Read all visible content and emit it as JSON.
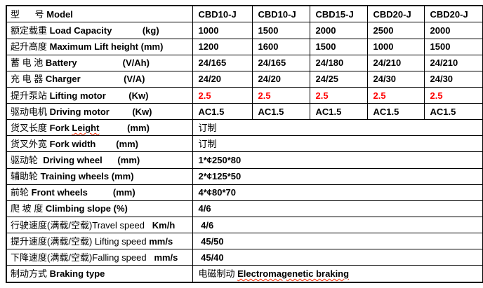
{
  "page": {
    "background": "#ffffff"
  },
  "colors": {
    "text": "#000000",
    "border": "#000000",
    "accent_red": "#ff0000",
    "spellcheck_underline": "#ff2a00"
  },
  "table": {
    "model_column_count": 5,
    "rows": [
      {
        "name": "model",
        "label": [
          {
            "t": "型      号 "
          },
          {
            "t": "Model",
            "b": 1
          }
        ],
        "cells": [
          [
            {
              "t": "CBD10-J",
              "b": 1
            }
          ],
          [
            {
              "t": "CBD10-J",
              "b": 1
            }
          ],
          [
            {
              "t": "CBD15-J",
              "b": 1
            }
          ],
          [
            {
              "t": "CBD20-J",
              "b": 1
            }
          ],
          [
            {
              "t": "CBD20-J",
              "b": 1
            }
          ]
        ]
      },
      {
        "name": "load-capacity",
        "label": [
          {
            "t": "额定载重 "
          },
          {
            "t": "Load Capacity            (kg)",
            "b": 1
          }
        ],
        "cells": [
          [
            {
              "t": "1000",
              "b": 1
            }
          ],
          [
            {
              "t": "1500",
              "b": 1
            }
          ],
          [
            {
              "t": "2000",
              "b": 1
            }
          ],
          [
            {
              "t": "2500",
              "b": 1
            }
          ],
          [
            {
              "t": "2000",
              "b": 1
            }
          ]
        ]
      },
      {
        "name": "max-lift-height",
        "label": [
          {
            "t": "起升高度 "
          },
          {
            "t": "Maximum Lift height (mm)",
            "b": 1
          }
        ],
        "cells": [
          [
            {
              "t": "1200",
              "b": 1
            }
          ],
          [
            {
              "t": "1600",
              "b": 1
            }
          ],
          [
            {
              "t": "1500",
              "b": 1
            }
          ],
          [
            {
              "t": "1000",
              "b": 1
            }
          ],
          [
            {
              "t": "1500",
              "b": 1
            }
          ]
        ]
      },
      {
        "name": "battery",
        "label": [
          {
            "t": "蓄 电 池 "
          },
          {
            "t": "Battery                  (V/Ah)",
            "b": 1
          }
        ],
        "cells": [
          [
            {
              "t": "24/165",
              "b": 1
            }
          ],
          [
            {
              "t": "24/165",
              "b": 1
            }
          ],
          [
            {
              "t": "24/180",
              "b": 1
            }
          ],
          [
            {
              "t": "24/210",
              "b": 1
            }
          ],
          [
            {
              "t": "24/210",
              "b": 1
            }
          ]
        ]
      },
      {
        "name": "charger",
        "label": [
          {
            "t": "充 电 器 "
          },
          {
            "t": "Charger                 (V/A)",
            "b": 1
          }
        ],
        "cells": [
          [
            {
              "t": "24/20",
              "b": 1
            }
          ],
          [
            {
              "t": "24/20",
              "b": 1
            }
          ],
          [
            {
              "t": "24/25",
              "b": 1
            }
          ],
          [
            {
              "t": "24/30",
              "b": 1
            }
          ],
          [
            {
              "t": "24/30",
              "b": 1
            }
          ]
        ]
      },
      {
        "name": "lifting-motor",
        "label": [
          {
            "t": "提升泵站 "
          },
          {
            "t": "Lifting motor         (Kw)",
            "b": 1
          }
        ],
        "cells": [
          [
            {
              "t": "2.5",
              "b": 1,
              "r": 1
            }
          ],
          [
            {
              "t": "2.5",
              "b": 1,
              "r": 1
            }
          ],
          [
            {
              "t": "2.5",
              "b": 1,
              "r": 1
            }
          ],
          [
            {
              "t": "2.5",
              "b": 1,
              "r": 1
            }
          ],
          [
            {
              "t": "2.5",
              "b": 1,
              "r": 1
            }
          ]
        ]
      },
      {
        "name": "driving-motor",
        "label": [
          {
            "t": "驱动电机 "
          },
          {
            "t": "Driving motor         (Kw)",
            "b": 1
          }
        ],
        "cells": [
          [
            {
              "t": "AC1.5",
              "b": 1
            }
          ],
          [
            {
              "t": "AC1.5",
              "b": 1
            }
          ],
          [
            {
              "t": "AC1.5",
              "b": 1
            }
          ],
          [
            {
              "t": "AC1.5",
              "b": 1
            }
          ],
          [
            {
              "t": "AC1.5",
              "b": 1
            }
          ]
        ]
      },
      {
        "name": "fork-length",
        "label": [
          {
            "t": "货叉长度 "
          },
          {
            "t": "Fork ",
            "b": 1
          },
          {
            "t": "Leight",
            "b": 1,
            "w": 1
          },
          {
            "t": "           (mm)",
            "b": 1
          }
        ],
        "span": 1,
        "cells": [
          [
            {
              "t": "订制"
            }
          ]
        ]
      },
      {
        "name": "fork-width",
        "label": [
          {
            "t": "货叉外宽 "
          },
          {
            "t": "Fork width        (mm)",
            "b": 1
          }
        ],
        "span": 1,
        "cells": [
          [
            {
              "t": "订制"
            }
          ]
        ]
      },
      {
        "name": "driving-wheel",
        "label": [
          {
            "t": "驱动轮  "
          },
          {
            "t": "Driving wheel      (mm)",
            "b": 1
          }
        ],
        "span": 1,
        "cells": [
          [
            {
              "t": "1*¢250*80",
              "b": 1
            }
          ]
        ]
      },
      {
        "name": "training-wheels",
        "label": [
          {
            "t": "辅助轮 "
          },
          {
            "t": "Training wheels (mm)",
            "b": 1
          }
        ],
        "span": 1,
        "cells": [
          [
            {
              "t": "2*¢125*50",
              "b": 1
            }
          ]
        ]
      },
      {
        "name": "front-wheels",
        "label": [
          {
            "t": "前轮 "
          },
          {
            "t": "Front wheels          (mm)",
            "b": 1
          }
        ],
        "span": 1,
        "cells": [
          [
            {
              "t": "4*¢80*70",
              "b": 1
            }
          ]
        ]
      },
      {
        "name": "climbing-slope",
        "label": [
          {
            "t": "爬 坡 度 "
          },
          {
            "t": "Climbing slope (%)",
            "b": 1
          }
        ],
        "span": 1,
        "cells": [
          [
            {
              "t": "4/6",
              "b": 1
            }
          ]
        ]
      },
      {
        "name": "travel-speed",
        "label": [
          {
            "t": "行驶速度(满载/空载)Travel speed   "
          },
          {
            "t": "Km/h",
            "b": 1
          }
        ],
        "span": 1,
        "cells": [
          [
            {
              "t": " 4/6",
              "b": 1
            }
          ]
        ]
      },
      {
        "name": "lifting-speed",
        "label": [
          {
            "t": "提升速度(满载/空载) Lifting speed "
          },
          {
            "t": "mm/s",
            "b": 1
          }
        ],
        "span": 1,
        "cells": [
          [
            {
              "t": " 45/50",
              "b": 1
            }
          ]
        ]
      },
      {
        "name": "falling-speed",
        "label": [
          {
            "t": "下降速度(满载/空载)Falling speed   "
          },
          {
            "t": "mm/s",
            "b": 1
          }
        ],
        "span": 1,
        "cells": [
          [
            {
              "t": " 45/40",
              "b": 1
            }
          ]
        ]
      },
      {
        "name": "braking-type",
        "label": [
          {
            "t": "制动方式 "
          },
          {
            "t": "Braking type",
            "b": 1
          }
        ],
        "span": 1,
        "cells": [
          [
            {
              "t": "电磁制动 "
            },
            {
              "t": "Electromagenetic braking",
              "b": 1,
              "w": 1
            }
          ]
        ]
      }
    ]
  }
}
